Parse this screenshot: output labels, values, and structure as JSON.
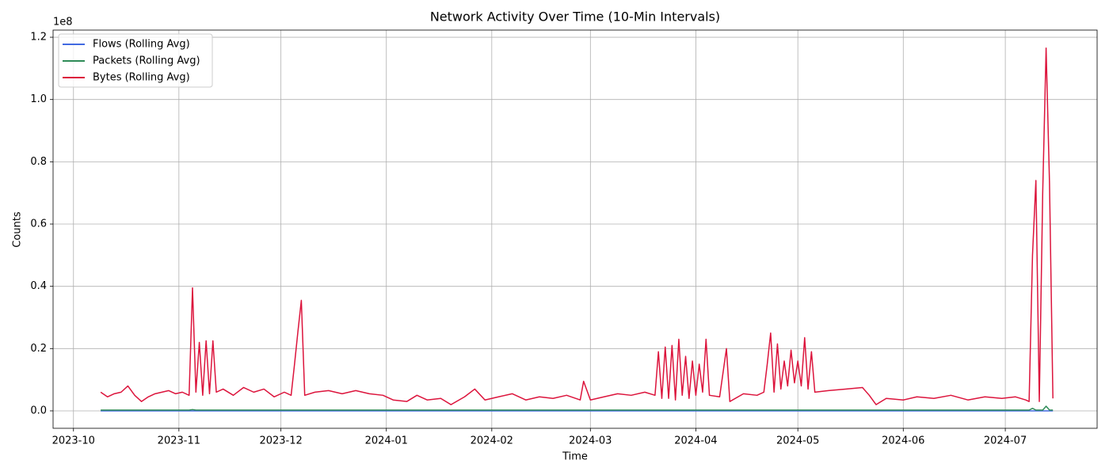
{
  "chart_data": {
    "type": "line",
    "title": "Network Activity Over Time (10-Min Intervals)",
    "x_label": "Time",
    "y_label": "Counts",
    "y_offset_label": "1e8",
    "x": [
      "2023-10-09",
      "2023-10-11",
      "2023-10-13",
      "2023-10-15",
      "2023-10-17",
      "2023-10-19",
      "2023-10-21",
      "2023-10-23",
      "2023-10-25",
      "2023-10-27",
      "2023-10-29",
      "2023-10-31",
      "2023-11-02",
      "2023-11-04",
      "2023-11-05",
      "2023-11-06",
      "2023-11-07",
      "2023-11-08",
      "2023-11-09",
      "2023-11-10",
      "2023-11-11",
      "2023-11-12",
      "2023-11-14",
      "2023-11-17",
      "2023-11-20",
      "2023-11-23",
      "2023-11-26",
      "2023-11-29",
      "2023-12-02",
      "2023-12-04",
      "2023-12-05",
      "2023-12-06",
      "2023-12-07",
      "2023-12-08",
      "2023-12-11",
      "2023-12-15",
      "2023-12-19",
      "2023-12-23",
      "2023-12-27",
      "2023-12-31",
      "2024-01-03",
      "2024-01-07",
      "2024-01-10",
      "2024-01-13",
      "2024-01-17",
      "2024-01-20",
      "2024-01-24",
      "2024-01-27",
      "2024-01-30",
      "2024-02-03",
      "2024-02-07",
      "2024-02-11",
      "2024-02-15",
      "2024-02-19",
      "2024-02-23",
      "2024-02-27",
      "2024-02-28",
      "2024-03-01",
      "2024-03-05",
      "2024-03-09",
      "2024-03-13",
      "2024-03-17",
      "2024-03-20",
      "2024-03-21",
      "2024-03-22",
      "2024-03-23",
      "2024-03-24",
      "2024-03-25",
      "2024-03-26",
      "2024-03-27",
      "2024-03-28",
      "2024-03-29",
      "2024-03-30",
      "2024-03-31",
      "2024-04-01",
      "2024-04-02",
      "2024-04-03",
      "2024-04-04",
      "2024-04-05",
      "2024-04-08",
      "2024-04-10",
      "2024-04-11",
      "2024-04-15",
      "2024-04-19",
      "2024-04-21",
      "2024-04-22",
      "2024-04-23",
      "2024-04-24",
      "2024-04-25",
      "2024-04-26",
      "2024-04-27",
      "2024-04-28",
      "2024-04-29",
      "2024-04-30",
      "2024-05-01",
      "2024-05-02",
      "2024-05-03",
      "2024-05-04",
      "2024-05-05",
      "2024-05-06",
      "2024-05-10",
      "2024-05-15",
      "2024-05-20",
      "2024-05-22",
      "2024-05-24",
      "2024-05-27",
      "2024-06-01",
      "2024-06-05",
      "2024-06-10",
      "2024-06-15",
      "2024-06-20",
      "2024-06-25",
      "2024-06-30",
      "2024-07-04",
      "2024-07-07",
      "2024-07-08",
      "2024-07-09",
      "2024-07-10",
      "2024-07-11",
      "2024-07-12",
      "2024-07-13",
      "2024-07-14",
      "2024-07-15"
    ],
    "series": [
      {
        "name": "Flows (Rolling Avg)",
        "color": "#4169e1",
        "values": [
          3000,
          3000,
          3000,
          3000,
          3000,
          3000,
          3000,
          3000,
          3000,
          3000,
          3000,
          3000,
          3000,
          3000,
          3000,
          3000,
          3000,
          3000,
          3000,
          3000,
          3000,
          3000,
          3000,
          3000,
          3000,
          3000,
          3000,
          3000,
          3000,
          3000,
          3000,
          3000,
          3000,
          3000,
          3000,
          3000,
          3000,
          3000,
          3000,
          3000,
          3000,
          3000,
          3000,
          3000,
          3000,
          3000,
          3000,
          3000,
          3000,
          3000,
          3000,
          3000,
          3000,
          3000,
          3000,
          3000,
          3000,
          3000,
          3000,
          3000,
          3000,
          3000,
          3000,
          3000,
          3000,
          3000,
          3000,
          3000,
          3000,
          3000,
          3000,
          3000,
          3000,
          3000,
          3000,
          3000,
          3000,
          3000,
          3000,
          3000,
          3000,
          3000,
          3000,
          3000,
          3000,
          3000,
          3000,
          3000,
          3000,
          3000,
          3000,
          3000,
          3000,
          3000,
          3000,
          3000,
          3000,
          3000,
          3000,
          3000,
          3000,
          3000,
          3000,
          3000,
          3000,
          3000,
          3000,
          3000,
          3000,
          3000,
          3000,
          3000,
          3000,
          3000,
          3000,
          3000,
          3000,
          3000,
          3000,
          3000,
          3000,
          3000,
          3000
        ]
      },
      {
        "name": "Packets (Rolling Avg)",
        "color": "#2e8b57",
        "values": [
          250000,
          250000,
          250000,
          250000,
          250000,
          250000,
          250000,
          250000,
          250000,
          250000,
          250000,
          250000,
          250000,
          250000,
          400000,
          250000,
          250000,
          250000,
          250000,
          250000,
          250000,
          250000,
          250000,
          250000,
          250000,
          250000,
          250000,
          250000,
          250000,
          250000,
          250000,
          250000,
          250000,
          250000,
          250000,
          250000,
          250000,
          250000,
          250000,
          250000,
          250000,
          250000,
          250000,
          250000,
          250000,
          250000,
          250000,
          250000,
          250000,
          250000,
          250000,
          250000,
          250000,
          250000,
          250000,
          250000,
          250000,
          250000,
          250000,
          250000,
          250000,
          250000,
          250000,
          250000,
          250000,
          250000,
          250000,
          250000,
          250000,
          250000,
          250000,
          250000,
          250000,
          250000,
          250000,
          250000,
          250000,
          250000,
          250000,
          250000,
          250000,
          250000,
          250000,
          250000,
          250000,
          250000,
          250000,
          250000,
          250000,
          250000,
          250000,
          250000,
          250000,
          250000,
          250000,
          250000,
          250000,
          250000,
          250000,
          250000,
          250000,
          250000,
          250000,
          250000,
          250000,
          250000,
          250000,
          250000,
          250000,
          250000,
          250000,
          250000,
          250000,
          250000,
          250000,
          250000,
          800000,
          250000,
          250000,
          250000,
          1500000,
          250000,
          250000
        ]
      },
      {
        "name": "Bytes (Rolling Avg)",
        "color": "#dc143c",
        "values": [
          6000000,
          4500000,
          5500000,
          6000000,
          8000000,
          5000000,
          3000000,
          4500000,
          5500000,
          6000000,
          6500000,
          5500000,
          6000000,
          5000000,
          39500000,
          6000000,
          22000000,
          5000000,
          22500000,
          5500000,
          22500000,
          6000000,
          7000000,
          5000000,
          7500000,
          6000000,
          7000000,
          4500000,
          6000000,
          5000000,
          15000000,
          25500000,
          35500000,
          5000000,
          6000000,
          6500000,
          5500000,
          6500000,
          5500000,
          5000000,
          3500000,
          3000000,
          5000000,
          3500000,
          4000000,
          2000000,
          4500000,
          7000000,
          3500000,
          4500000,
          5500000,
          3500000,
          4500000,
          4000000,
          5000000,
          3500000,
          9500000,
          3500000,
          4500000,
          5500000,
          5000000,
          6000000,
          5000000,
          19000000,
          4000000,
          20500000,
          4000000,
          21000000,
          3500000,
          23000000,
          5000000,
          17500000,
          4000000,
          16000000,
          5000000,
          15000000,
          6000000,
          23000000,
          5000000,
          4500000,
          20000000,
          3000000,
          5500000,
          5000000,
          6000000,
          15000000,
          25000000,
          6000000,
          21500000,
          7000000,
          16000000,
          8000000,
          19500000,
          9000000,
          16000000,
          8000000,
          23500000,
          7000000,
          19000000,
          6000000,
          6500000,
          7000000,
          7500000,
          5000000,
          2000000,
          4000000,
          3500000,
          4500000,
          4000000,
          5000000,
          3500000,
          4500000,
          4000000,
          4500000,
          3500000,
          3000000,
          50000000,
          74000000,
          3000000,
          70000000,
          116500000,
          73000000,
          4000000
        ]
      }
    ],
    "xlim": [
      "2023-09-25",
      "2024-07-28"
    ],
    "xticks": [
      {
        "value": "2023-10-01",
        "label": "2023-10"
      },
      {
        "value": "2023-11-01",
        "label": "2023-11"
      },
      {
        "value": "2023-12-01",
        "label": "2023-12"
      },
      {
        "value": "2024-01-01",
        "label": "2024-01"
      },
      {
        "value": "2024-02-01",
        "label": "2024-02"
      },
      {
        "value": "2024-03-01",
        "label": "2024-03"
      },
      {
        "value": "2024-04-01",
        "label": "2024-04"
      },
      {
        "value": "2024-05-01",
        "label": "2024-05"
      },
      {
        "value": "2024-06-01",
        "label": "2024-06"
      },
      {
        "value": "2024-07-01",
        "label": "2024-07"
      }
    ],
    "ylim": [
      -5600000,
      122300000
    ],
    "yticks": [
      {
        "value": 0,
        "label": "0.0"
      },
      {
        "value": 20000000,
        "label": "0.2"
      },
      {
        "value": 40000000,
        "label": "0.4"
      },
      {
        "value": 60000000,
        "label": "0.6"
      },
      {
        "value": 80000000,
        "label": "0.8"
      },
      {
        "value": 100000000,
        "label": "1.0"
      },
      {
        "value": 120000000,
        "label": "1.2"
      }
    ],
    "grid": true,
    "legend": "upper left"
  }
}
